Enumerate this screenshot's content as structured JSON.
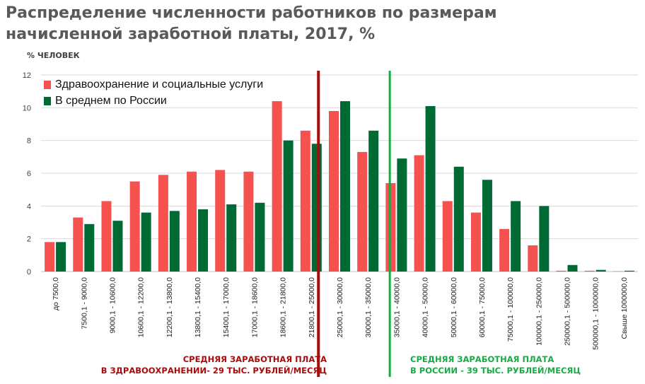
{
  "title": {
    "line1": "Распределение численности работников по размерам",
    "line2": "начисленной заработной платы, 2017, %"
  },
  "chart_data": {
    "type": "bar",
    "ylabel": "% ЧЕЛОВЕК",
    "ylim": [
      0,
      12
    ],
    "yticks": [
      0,
      2,
      4,
      6,
      8,
      10,
      12
    ],
    "grid": true,
    "legend_position": "top-left",
    "categories": [
      "до 7500,0",
      "7500,1 - 9000,0",
      "9000,1 - 10600,0",
      "10600,1 - 12200,0",
      "12200,1 - 13800,0",
      "13800,1 - 15400,0",
      "15400,1 - 17000,0",
      "17000,1 - 18600,0",
      "18600,1 - 21800,0",
      "21800,1 - 25000,0",
      "25000,1 - 30000,0",
      "30000,1 - 35000,0",
      "35000,1 - 40000,0",
      "40000,1 - 50000,0",
      "50000,1 - 60000,0",
      "60000,1 - 75000,0",
      "75000,1 - 100000,0",
      "100000,1 - 250000,0",
      "250000,1 - 500000,0",
      "500000,1 - 1000000,0",
      "Свыше 1000000,0"
    ],
    "series": [
      {
        "name": "Здравоохранение и социальные услуги",
        "color": "#f4514f",
        "values": [
          1.8,
          3.3,
          4.3,
          5.5,
          5.9,
          6.1,
          6.2,
          6.1,
          10.4,
          8.6,
          9.8,
          7.3,
          5.4,
          7.1,
          4.3,
          3.6,
          2.6,
          1.6,
          0.05,
          0.05,
          0.02
        ]
      },
      {
        "name": "В среднем по России",
        "color": "#006a35",
        "values": [
          1.8,
          2.9,
          3.1,
          3.6,
          3.7,
          3.8,
          4.1,
          4.2,
          8.0,
          7.8,
          10.4,
          8.6,
          6.9,
          10.1,
          6.4,
          5.6,
          4.3,
          4.0,
          0.4,
          0.1,
          0.05
        ]
      }
    ],
    "reference_lines": [
      {
        "label_line1": "СРЕДНЯЯ ЗАРАБОТНАЯ ПЛАТА",
        "label_line2": "В ЗДРАВООХРАНЕНИИ- 29 ТЫС. РУБЛЕЙ/МЕСЯЦ",
        "color": "#a80c0c",
        "category_position": 9.76
      },
      {
        "label_line1": "СРЕДНЯЯ ЗАРАБОТНАЯ ПЛАТА",
        "label_line2": "В РОССИИ - 39 ТЫС. РУБЛЕЙ/МЕСЯЦ",
        "color": "#1aaa45",
        "category_position": 12.27
      }
    ]
  }
}
